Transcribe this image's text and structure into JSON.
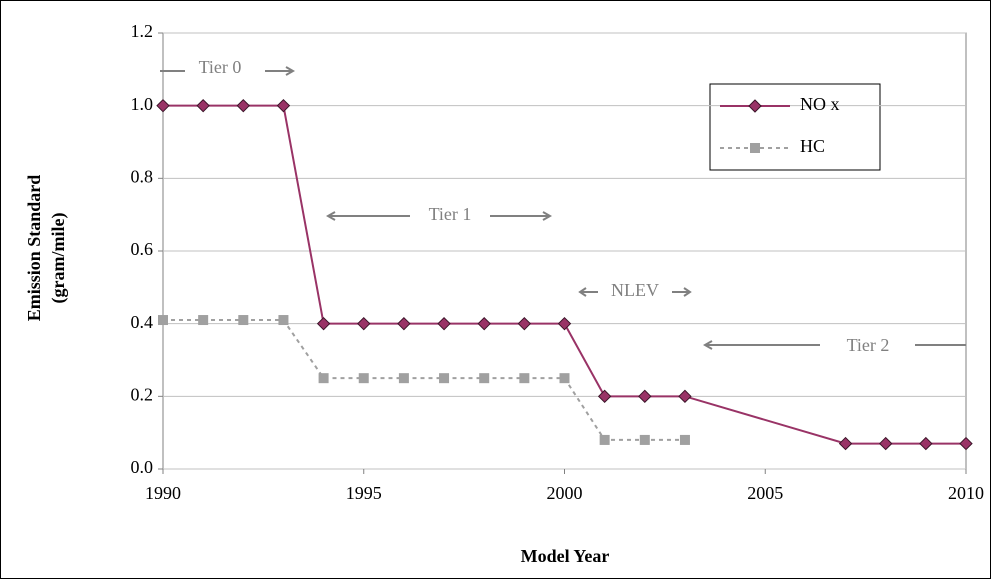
{
  "chart_data": {
    "type": "line",
    "ylabel": [
      "Emission Standard",
      "(gram/mile)"
    ],
    "xlabel": "Model Year",
    "annotations": [
      "Tier 0",
      "Tier 1",
      "NLEV",
      "Tier 2"
    ],
    "xlim": [
      1990,
      2010
    ],
    "xticks": [
      1990,
      1995,
      2000,
      2005,
      2010
    ],
    "ylim": [
      0,
      1.2
    ],
    "yticks": [
      {
        "value": 0,
        "label": "0.0"
      },
      0.2,
      0.4,
      0.6,
      0.8,
      {
        "value": 1,
        "label": "1.0"
      },
      1.2
    ],
    "grid": true,
    "legend": "upper right",
    "series": [
      {
        "name": "NO x",
        "color": "#993366",
        "marker": "diamond",
        "dash": "solid",
        "x": [
          1990,
          1991,
          1992,
          1993,
          1994,
          1995,
          1996,
          1997,
          1998,
          1999,
          2000,
          2001,
          2002,
          2003,
          2007,
          2008,
          2009,
          2010
        ],
        "values": [
          1.0,
          1.0,
          1.0,
          1.0,
          0.4,
          0.4,
          0.4,
          0.4,
          0.4,
          0.4,
          0.4,
          0.2,
          0.2,
          0.2,
          0.07,
          0.07,
          0.07,
          0.07
        ]
      },
      {
        "name": "HC",
        "color": "#a0a0a0",
        "marker": "square",
        "dash": "dotted",
        "x": [
          1990,
          1991,
          1992,
          1993,
          1994,
          1995,
          1996,
          1997,
          1998,
          1999,
          2000,
          2001,
          2002,
          2003
        ],
        "values": [
          0.41,
          0.41,
          0.41,
          0.41,
          0.25,
          0.25,
          0.25,
          0.25,
          0.25,
          0.25,
          0.25,
          0.08,
          0.08,
          0.08
        ]
      }
    ]
  }
}
